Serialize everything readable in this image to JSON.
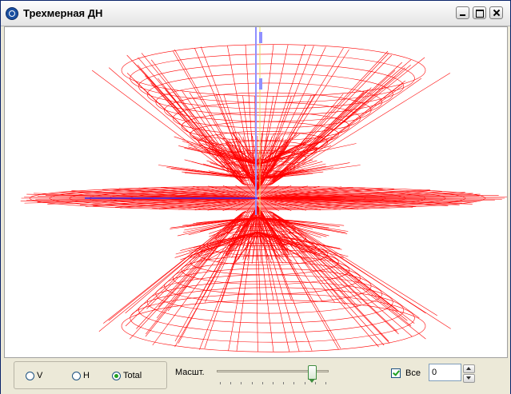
{
  "window": {
    "title": "Трехмерная ДН"
  },
  "icons": {
    "app": "app-globe-icon",
    "minimize": "minimize-icon",
    "maximize": "maximize-icon",
    "close": "close-icon"
  },
  "colors": {
    "wireframe": "#ff0000",
    "axis_vertical": "#9090ff",
    "axis_vertical2": "#e8e060",
    "axis_horizontal": "#3030ff"
  },
  "controls": {
    "radios": [
      {
        "label": "V",
        "selected": false
      },
      {
        "label": "H",
        "selected": false
      },
      {
        "label": "Total",
        "selected": true
      }
    ],
    "scale_label": "Масшт.",
    "scale_value": 0.88,
    "all_checkbox": {
      "label": "Все",
      "checked": true
    },
    "number_value": "0"
  }
}
